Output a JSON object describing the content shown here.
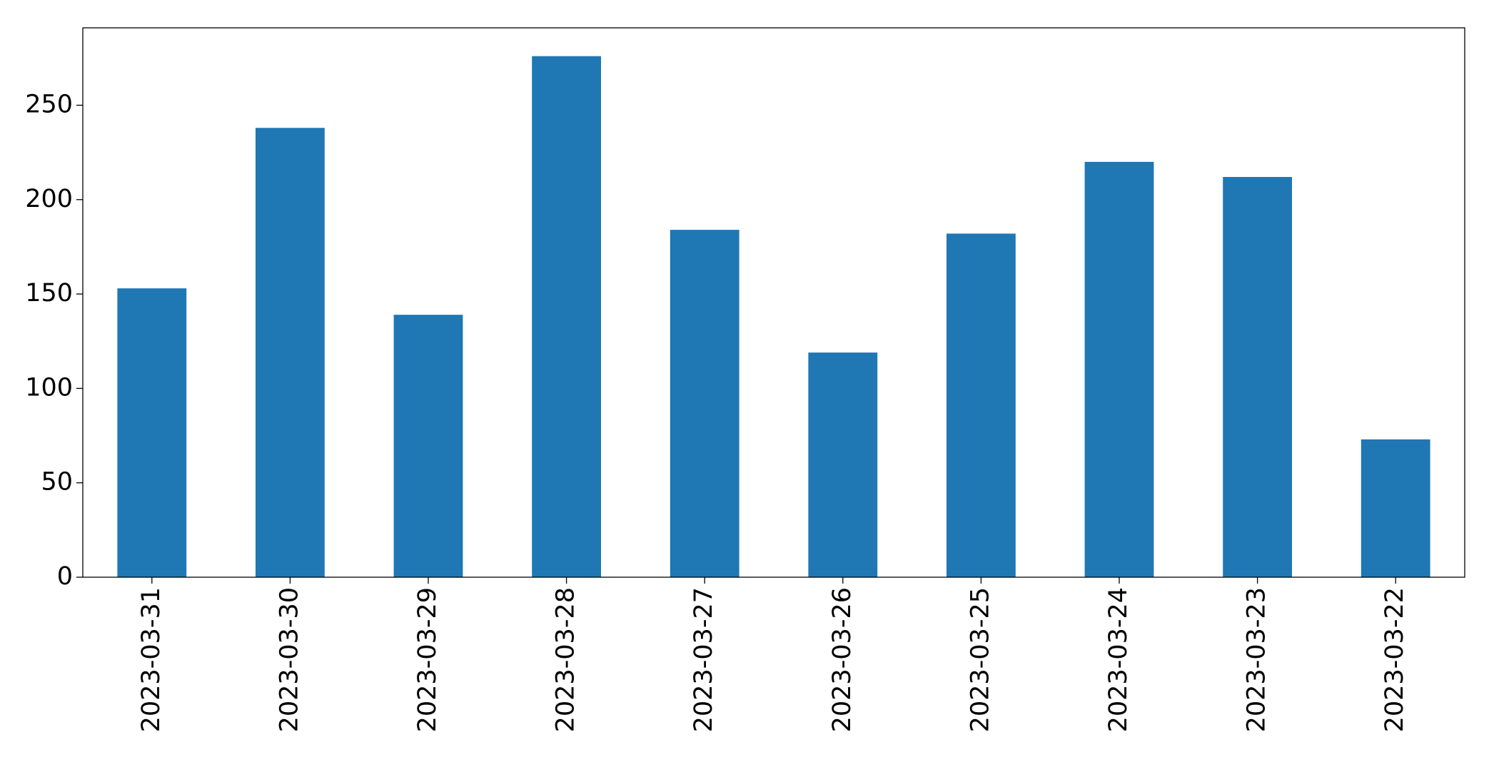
{
  "chart_data": {
    "type": "bar",
    "categories": [
      "2023-03-31",
      "2023-03-30",
      "2023-03-29",
      "2023-03-28",
      "2023-03-27",
      "2023-03-26",
      "2023-03-25",
      "2023-03-24",
      "2023-03-23",
      "2023-03-22"
    ],
    "values": [
      153,
      238,
      139,
      276,
      184,
      119,
      182,
      220,
      212,
      73
    ],
    "color": "#1f77b4",
    "ylim": [
      0,
      291
    ],
    "yticks": [
      0,
      50,
      100,
      150,
      200,
      250
    ],
    "grid": false
  }
}
